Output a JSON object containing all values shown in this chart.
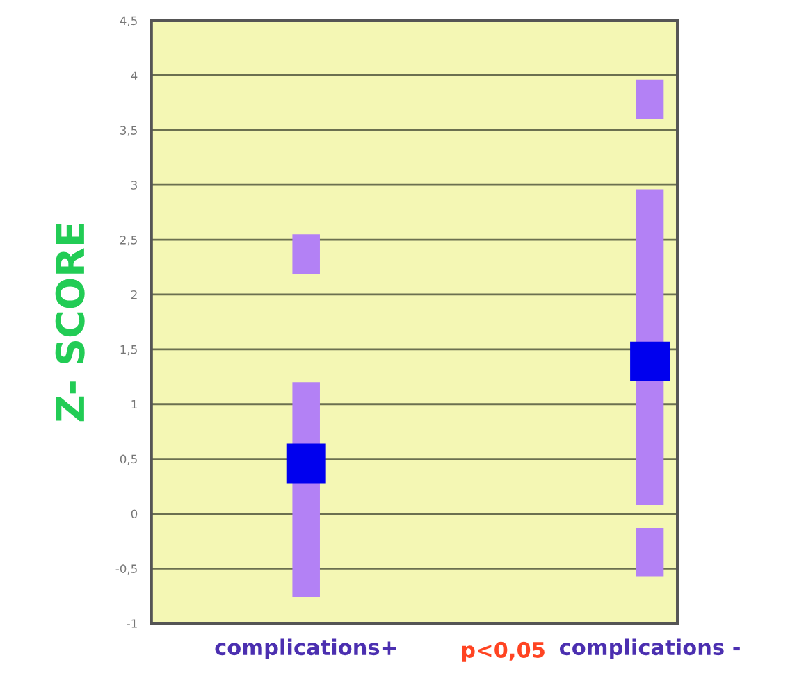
{
  "chart_data": {
    "type": "bar",
    "ylabel": "Z- SCORE",
    "categories": [
      "complications+",
      "complications -"
    ],
    "series": [
      {
        "color": "#b381f5",
        "values": [
          1.96,
          2.88
        ],
        "base": [
          -0.76,
          0.08
        ]
      },
      {
        "color": "#b381f5",
        "values": [
          0.36,
          0.36
        ],
        "base": [
          2.19,
          3.6
        ]
      },
      {
        "color": "#b381f5",
        "values": [
          null,
          0.44
        ],
        "base": [
          null,
          -0.57
        ]
      },
      {
        "type": "scatter",
        "marker": "square",
        "color": "#0000ee",
        "values": [
          0.46,
          1.39
        ]
      }
    ],
    "ylim": [
      -1,
      4.5
    ],
    "yticks": [
      {
        "value": -1,
        "label": "-1"
      },
      {
        "value": -0.5,
        "label": "-0,5"
      },
      0,
      {
        "value": 0.5,
        "label": "0,5"
      },
      1,
      {
        "value": 1.5,
        "label": "1,5"
      },
      2,
      {
        "value": 2.5,
        "label": "2,5"
      },
      3,
      {
        "value": 3.5,
        "label": "3,5"
      },
      4,
      {
        "value": 4.5,
        "label": "4,5"
      }
    ],
    "grid": "y",
    "annotations": [
      "p<0,05"
    ]
  }
}
